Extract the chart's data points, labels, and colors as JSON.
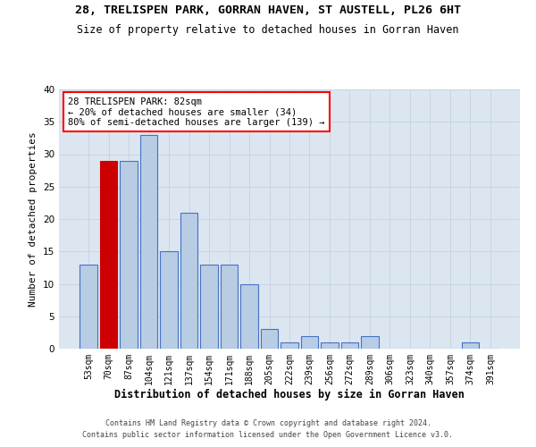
{
  "title1": "28, TRELISPEN PARK, GORRAN HAVEN, ST AUSTELL, PL26 6HT",
  "title2": "Size of property relative to detached houses in Gorran Haven",
  "xlabel": "Distribution of detached houses by size in Gorran Haven",
  "ylabel": "Number of detached properties",
  "footnote1": "Contains HM Land Registry data © Crown copyright and database right 2024.",
  "footnote2": "Contains public sector information licensed under the Open Government Licence v3.0.",
  "annotation_line1": "28 TRELISPEN PARK: 82sqm",
  "annotation_line2": "← 20% of detached houses are smaller (34)",
  "annotation_line3": "80% of semi-detached houses are larger (139) →",
  "bar_labels": [
    "53sqm",
    "70sqm",
    "87sqm",
    "104sqm",
    "121sqm",
    "137sqm",
    "154sqm",
    "171sqm",
    "188sqm",
    "205sqm",
    "222sqm",
    "239sqm",
    "256sqm",
    "272sqm",
    "289sqm",
    "306sqm",
    "323sqm",
    "340sqm",
    "357sqm",
    "374sqm",
    "391sqm"
  ],
  "bar_values": [
    13,
    29,
    29,
    33,
    15,
    21,
    13,
    13,
    10,
    3,
    1,
    2,
    1,
    1,
    2,
    0,
    0,
    0,
    0,
    1,
    0
  ],
  "bar_color": "#b8cce4",
  "bar_edge_color": "#4472c4",
  "highlight_bar_index": 1,
  "highlight_bar_color": "#cc0000",
  "ylim": [
    0,
    40
  ],
  "yticks": [
    0,
    5,
    10,
    15,
    20,
    25,
    30,
    35,
    40
  ],
  "grid_color": "#c8d4e3",
  "bg_color": "#dce6f1",
  "title1_fontsize": 9.5,
  "title2_fontsize": 8.5,
  "ylabel_fontsize": 8,
  "xlabel_fontsize": 8.5,
  "tick_fontsize": 7,
  "ann_fontsize": 7.5,
  "footnote_fontsize": 6
}
